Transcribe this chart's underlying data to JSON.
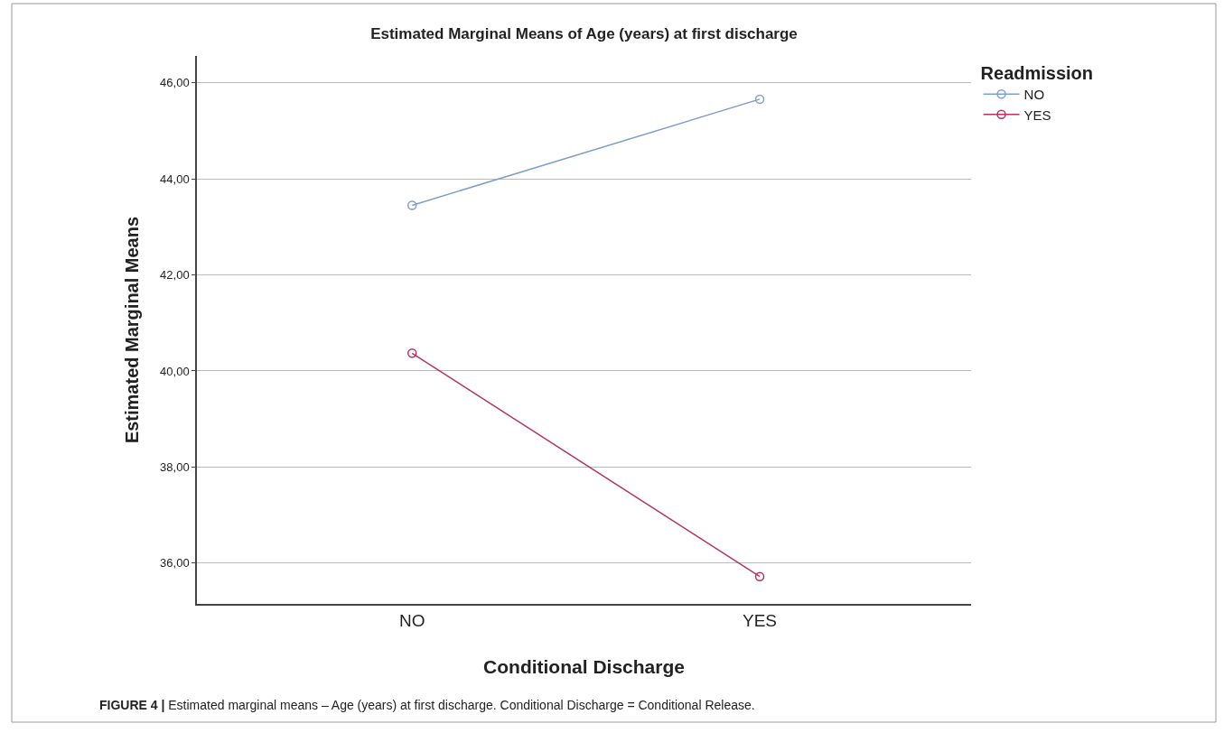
{
  "chart_data": {
    "type": "line",
    "title": "Estimated Marginal Means of Age (years) at first discharge",
    "xlabel": "Conditional Discharge",
    "ylabel": "Estimated Marginal Means",
    "legend_title": "Readmission",
    "categories": [
      "NO",
      "YES"
    ],
    "series": [
      {
        "name": "NO",
        "color": "#7f9fc9",
        "values": [
          43.45,
          45.66
        ]
      },
      {
        "name": "YES",
        "color": "#b3355f",
        "values": [
          40.37,
          35.72
        ]
      }
    ],
    "ylim": [
      35.15,
      46.56
    ],
    "yticks": [
      {
        "value": 36,
        "label": "36,00"
      },
      {
        "value": 38,
        "label": "38,00"
      },
      {
        "value": 40,
        "label": "40,00"
      },
      {
        "value": 42,
        "label": "42,00"
      },
      {
        "value": 44,
        "label": "44,00"
      },
      {
        "value": 46,
        "label": "46,00"
      }
    ],
    "grid": "y",
    "legend": "top right",
    "marker": "circle",
    "line_style": "solid",
    "annotations": [
      "FIGURE 4 | Estimated marginal means – Age (years) at first discharge. Conditional Discharge = Conditional Release."
    ]
  }
}
